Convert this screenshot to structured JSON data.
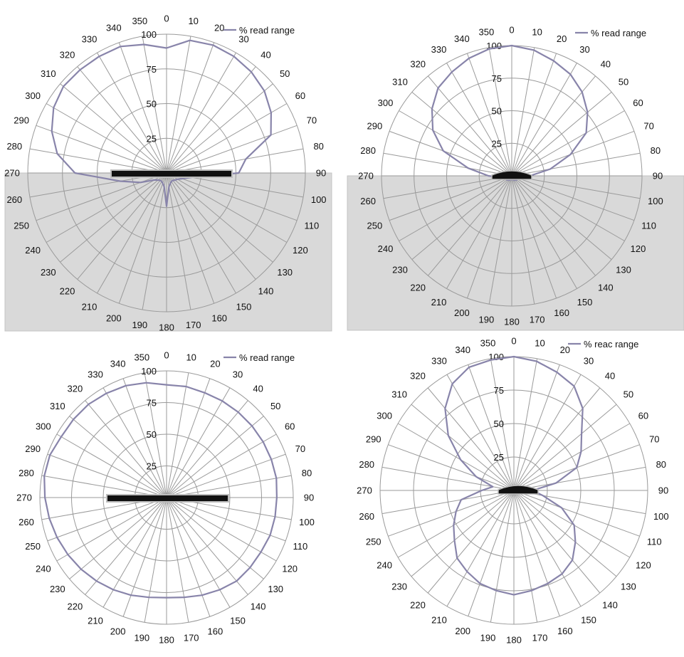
{
  "chart_data": [
    {
      "type": "polar-line",
      "title": "",
      "radial_max": 100,
      "radial_ticks": [
        "25",
        "50",
        "75",
        "100"
      ],
      "angle_labels": [
        "0",
        "10",
        "20",
        "30",
        "40",
        "50",
        "60",
        "70",
        "80",
        "90",
        "100",
        "110",
        "120",
        "130",
        "140",
        "150",
        "160",
        "170",
        "180",
        "190",
        "200",
        "210",
        "220",
        "230",
        "240",
        "250",
        "260",
        "270",
        "280",
        "290",
        "300",
        "310",
        "320",
        "330",
        "340",
        "350"
      ],
      "legend": {
        "label": "% read range",
        "position": "top-right"
      },
      "shaded_region": "lower half (90 to 270 via 180)",
      "shade_color": "#d9d9d9",
      "line_color": "#8884aa",
      "tag_shape": "flat bar",
      "series": [
        {
          "name": "% read range",
          "angles": [
            0,
            10,
            20,
            30,
            40,
            50,
            60,
            70,
            80,
            90,
            100,
            110,
            120,
            130,
            140,
            150,
            160,
            170,
            180,
            190,
            200,
            210,
            220,
            230,
            240,
            250,
            260,
            270,
            280,
            290,
            300,
            310,
            320,
            330,
            340,
            350
          ],
          "values": [
            90,
            97,
            98,
            97,
            95,
            92,
            87,
            80,
            58,
            52,
            18,
            12,
            9,
            8,
            7,
            7,
            8,
            10,
            24,
            10,
            8,
            7,
            7,
            8,
            10,
            20,
            34,
            66,
            80,
            88,
            94,
            97,
            97,
            97,
            97,
            94
          ]
        }
      ]
    },
    {
      "type": "polar-line",
      "title": "",
      "radial_max": 100,
      "radial_ticks": [
        "25",
        "50",
        "75",
        "100"
      ],
      "angle_labels": [
        "0",
        "10",
        "20",
        "30",
        "40",
        "50",
        "60",
        "70",
        "80",
        "90",
        "100",
        "110",
        "120",
        "130",
        "140",
        "150",
        "160",
        "170",
        "180",
        "190",
        "200",
        "210",
        "220",
        "230",
        "240",
        "250",
        "260",
        "270",
        "280",
        "290",
        "300",
        "310",
        "320",
        "330",
        "340",
        "350"
      ],
      "legend": {
        "label": "% read range",
        "position": "top-right"
      },
      "shaded_region": "lower half (90 to 270 via 180)",
      "shade_color": "#d9d9d9",
      "line_color": "#8884aa",
      "tag_shape": "small dome",
      "series": [
        {
          "name": "% read range",
          "angles": [
            0,
            10,
            20,
            30,
            40,
            50,
            60,
            70,
            80,
            90,
            100,
            110,
            120,
            130,
            140,
            150,
            160,
            170,
            180,
            190,
            200,
            210,
            220,
            230,
            240,
            250,
            260,
            270,
            280,
            290,
            300,
            310,
            320,
            330,
            340,
            350
          ],
          "values": [
            100,
            98,
            94,
            90,
            84,
            76,
            66,
            48,
            30,
            14,
            8,
            6,
            5,
            5,
            4,
            4,
            3,
            3,
            3,
            3,
            3,
            4,
            4,
            5,
            5,
            6,
            8,
            18,
            34,
            56,
            70,
            80,
            88,
            92,
            96,
            99
          ]
        }
      ]
    },
    {
      "type": "polar-line",
      "title": "",
      "radial_max": 100,
      "radial_ticks": [
        "25",
        "50",
        "75",
        "100"
      ],
      "angle_labels": [
        "0",
        "10",
        "20",
        "30",
        "40",
        "50",
        "60",
        "70",
        "80",
        "90",
        "100",
        "110",
        "120",
        "130",
        "140",
        "150",
        "160",
        "170",
        "180",
        "190",
        "200",
        "210",
        "220",
        "230",
        "240",
        "250",
        "260",
        "270",
        "280",
        "290",
        "300",
        "310",
        "320",
        "330",
        "340",
        "350"
      ],
      "legend": {
        "label": "% read range",
        "position": "top-right"
      },
      "shaded_region": "none",
      "shade_color": "#d9d9d9",
      "line_color": "#8884aa",
      "tag_shape": "flat bar",
      "series": [
        {
          "name": "% read range",
          "angles": [
            0,
            10,
            20,
            30,
            40,
            50,
            60,
            70,
            80,
            90,
            100,
            110,
            120,
            130,
            140,
            150,
            160,
            170,
            180,
            190,
            200,
            210,
            220,
            230,
            240,
            250,
            260,
            270,
            280,
            290,
            300,
            310,
            320,
            330,
            340,
            350
          ],
          "values": [
            89,
            89,
            88,
            88,
            88,
            88,
            88,
            88,
            88,
            87,
            87,
            87,
            86,
            86,
            86,
            84,
            82,
            80,
            79,
            80,
            82,
            84,
            86,
            88,
            90,
            92,
            94,
            96,
            98,
            98,
            96,
            96,
            96,
            95,
            94,
            92
          ]
        }
      ]
    },
    {
      "type": "polar-line",
      "title": "",
      "radial_max": 100,
      "radial_ticks": [
        "25",
        "50",
        "75",
        "100"
      ],
      "angle_labels": [
        "0",
        "10",
        "20",
        "30",
        "40",
        "50",
        "60",
        "70",
        "80",
        "90",
        "100",
        "110",
        "120",
        "130",
        "140",
        "150",
        "160",
        "170",
        "180",
        "190",
        "200",
        "210",
        "220",
        "230",
        "240",
        "250",
        "260",
        "270",
        "280",
        "290",
        "300",
        "310",
        "320",
        "330",
        "340",
        "350"
      ],
      "legend": {
        "label": "% reac range",
        "position": "top-right"
      },
      "shaded_region": "none",
      "shade_color": "#d9d9d9",
      "line_color": "#8884aa",
      "tag_shape": "small dome",
      "series": [
        {
          "name": "% reac range",
          "angles": [
            0,
            10,
            20,
            30,
            40,
            50,
            60,
            70,
            80,
            90,
            100,
            110,
            120,
            130,
            140,
            150,
            160,
            170,
            180,
            190,
            200,
            210,
            220,
            230,
            240,
            250,
            260,
            270,
            280,
            290,
            300,
            310,
            320,
            330,
            340,
            350
          ],
          "values": [
            100,
            98,
            94,
            90,
            80,
            66,
            58,
            50,
            32,
            14,
            22,
            38,
            52,
            60,
            68,
            72,
            74,
            76,
            78,
            76,
            74,
            70,
            66,
            58,
            52,
            46,
            40,
            24,
            16,
            30,
            46,
            64,
            80,
            92,
            98,
            99
          ]
        }
      ]
    }
  ]
}
